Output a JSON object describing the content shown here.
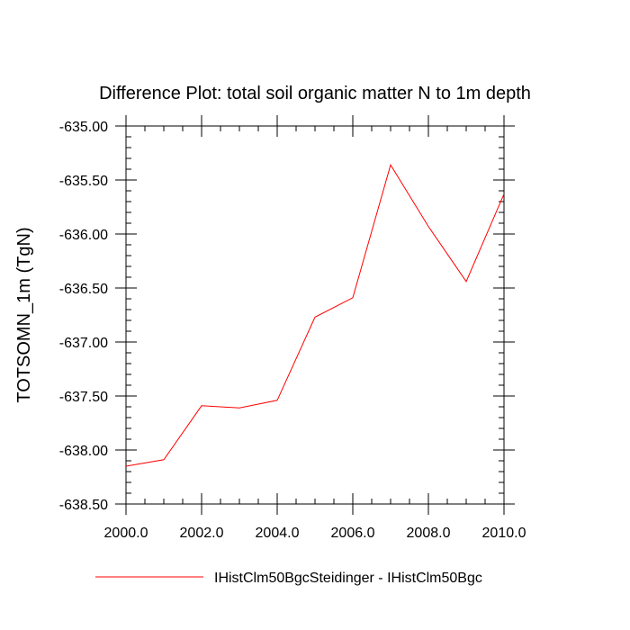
{
  "chart_data": {
    "type": "line",
    "title": "Difference Plot: total soil organic matter N to 1m depth",
    "xlabel": "",
    "ylabel": "TOTSOMN_1m  (TgN)",
    "xlim": [
      2000,
      2010
    ],
    "ylim": [
      -638.5,
      -635.0
    ],
    "xticks": [
      2000,
      2002,
      2004,
      2006,
      2008,
      2010
    ],
    "xtick_labels": [
      "2000.0",
      "2002.0",
      "2004.0",
      "2006.0",
      "2008.0",
      "2010.0"
    ],
    "yticks": [
      -635.0,
      -635.5,
      -636.0,
      -636.5,
      -637.0,
      -637.5,
      -638.0,
      -638.5
    ],
    "ytick_labels": [
      "-635.00",
      "-635.50",
      "-636.00",
      "-636.50",
      "-637.00",
      "-637.50",
      "-638.00",
      "-638.50"
    ],
    "grid": false,
    "legend_position": "bottom",
    "series": [
      {
        "name": "IHistClm50BgcSteidinger - IHistClm50Bgc",
        "color": "#ff0000",
        "x": [
          2000,
          2001,
          2002,
          2003,
          2004,
          2005,
          2006,
          2007,
          2008,
          2009,
          2010
        ],
        "y": [
          -638.15,
          -638.09,
          -637.59,
          -637.61,
          -637.54,
          -636.77,
          -636.59,
          -635.36,
          -635.93,
          -636.44,
          -635.63
        ]
      }
    ]
  }
}
